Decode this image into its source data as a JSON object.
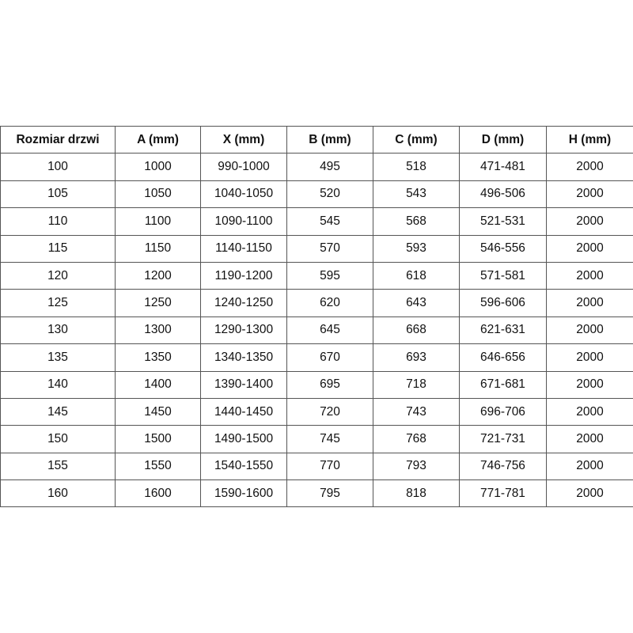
{
  "table": {
    "headers": [
      "Rozmiar drzwi",
      "A (mm)",
      "X (mm)",
      "B (mm)",
      "C (mm)",
      "D (mm)",
      "H (mm)"
    ],
    "rows": [
      [
        "100",
        "1000",
        "990-1000",
        "495",
        "518",
        "471-481",
        "2000"
      ],
      [
        "105",
        "1050",
        "1040-1050",
        "520",
        "543",
        "496-506",
        "2000"
      ],
      [
        "110",
        "1100",
        "1090-1100",
        "545",
        "568",
        "521-531",
        "2000"
      ],
      [
        "115",
        "1150",
        "1140-1150",
        "570",
        "593",
        "546-556",
        "2000"
      ],
      [
        "120",
        "1200",
        "1190-1200",
        "595",
        "618",
        "571-581",
        "2000"
      ],
      [
        "125",
        "1250",
        "1240-1250",
        "620",
        "643",
        "596-606",
        "2000"
      ],
      [
        "130",
        "1300",
        "1290-1300",
        "645",
        "668",
        "621-631",
        "2000"
      ],
      [
        "135",
        "1350",
        "1340-1350",
        "670",
        "693",
        "646-656",
        "2000"
      ],
      [
        "140",
        "1400",
        "1390-1400",
        "695",
        "718",
        "671-681",
        "2000"
      ],
      [
        "145",
        "1450",
        "1440-1450",
        "720",
        "743",
        "696-706",
        "2000"
      ],
      [
        "150",
        "1500",
        "1490-1500",
        "745",
        "768",
        "721-731",
        "2000"
      ],
      [
        "155",
        "1550",
        "1540-1550",
        "770",
        "793",
        "746-756",
        "2000"
      ],
      [
        "160",
        "1600",
        "1590-1600",
        "795",
        "818",
        "771-781",
        "2000"
      ]
    ]
  }
}
